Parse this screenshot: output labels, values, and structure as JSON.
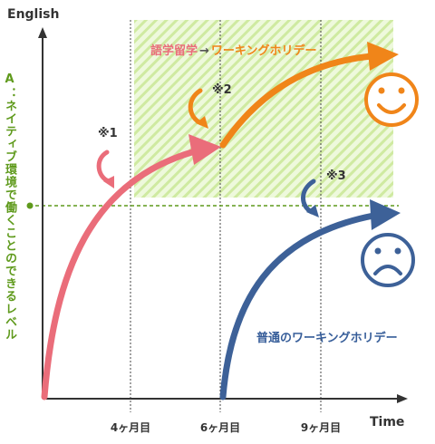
{
  "axes": {
    "y_title": "English",
    "x_title": "Time",
    "x_ticks": [
      "4ヶ月目",
      "6ヶ月目",
      "9ヶ月目"
    ]
  },
  "threshold_label": "A：ネイティブ環境で働くことのできるレベル",
  "captions": {
    "top_left": "語学留学",
    "top_arrow": "→",
    "top_right": "ワーキングホリデー",
    "bottom": "普通のワーキングホリデー"
  },
  "notes": [
    "※1",
    "※2",
    "※3"
  ],
  "faces": {
    "top": "smiley-face-icon",
    "bottom": "sad-face-icon"
  },
  "colors": {
    "pink": "#ea6d7a",
    "orange": "#f08519",
    "blue": "#3d6198",
    "green": "#5f9a1c",
    "highlight": "#d9f0b0"
  }
}
